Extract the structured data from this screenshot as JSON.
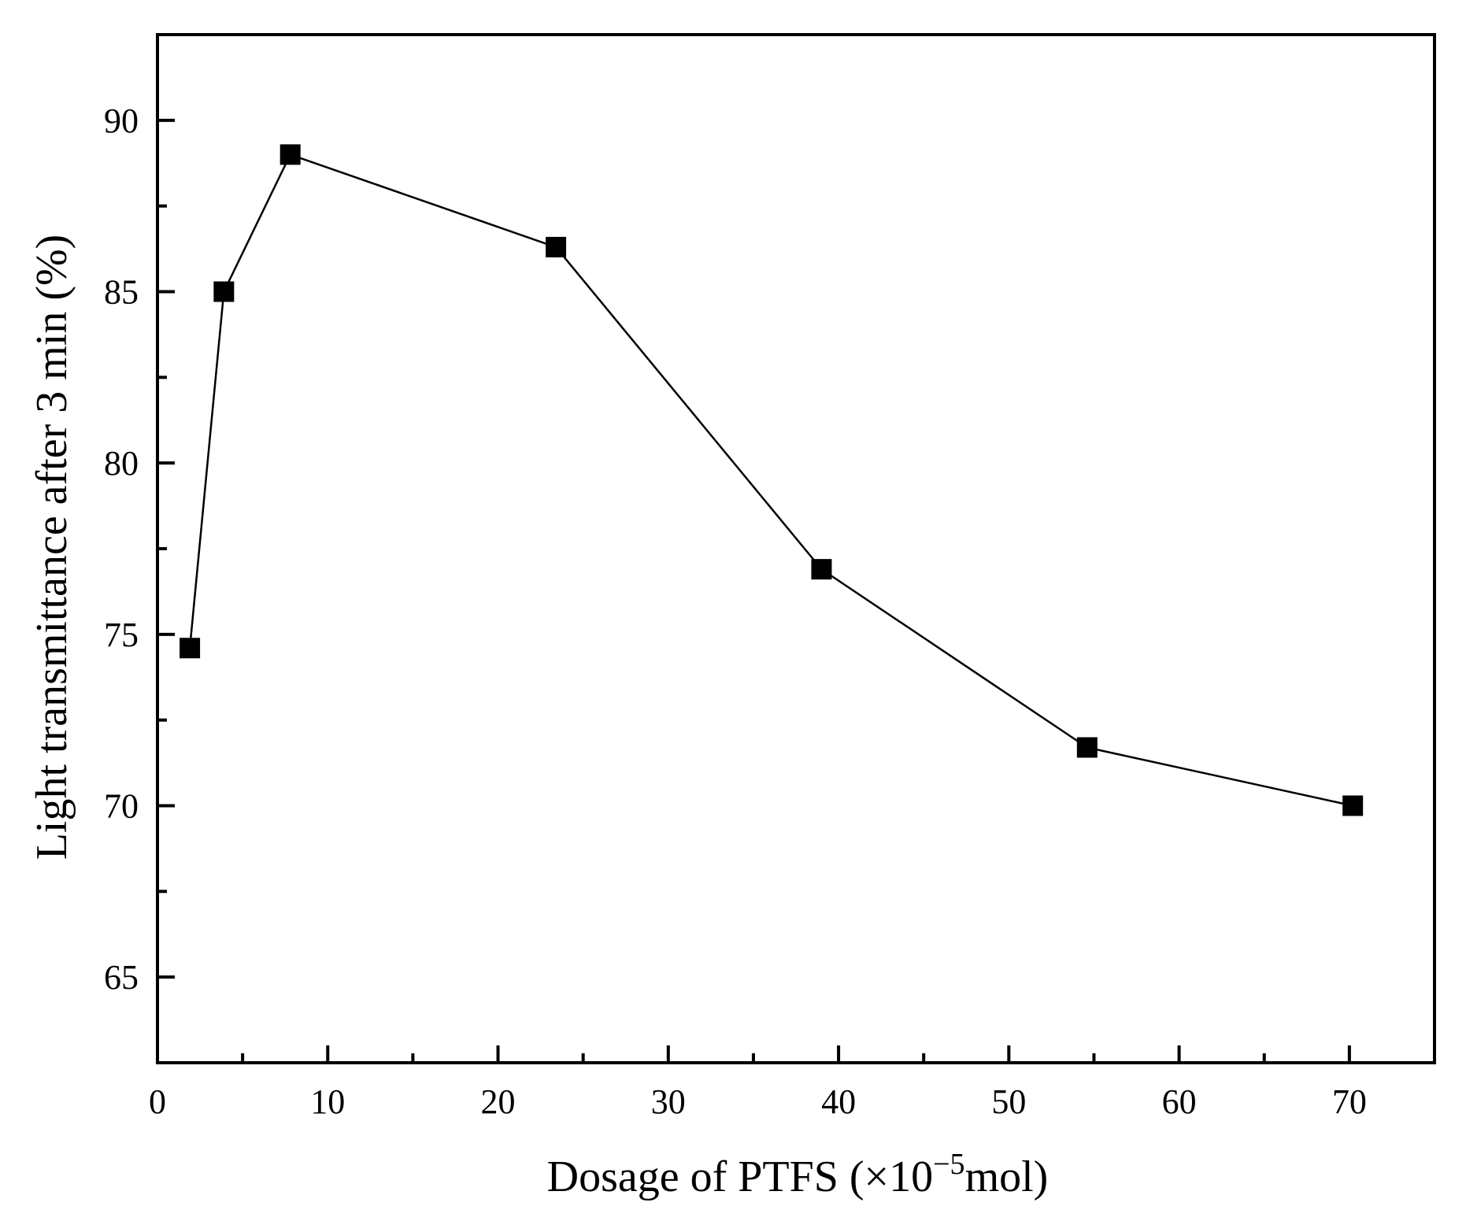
{
  "chart_data": {
    "type": "line",
    "title": "",
    "xlabel": {
      "prefix": "Dosage of PTFS (×10",
      "superscript": "−5",
      "suffix": "mol)"
    },
    "ylabel": "Light transmittance after 3 min (%)",
    "xlim": [
      0,
      75
    ],
    "ylim": [
      62.5,
      92.5
    ],
    "x_ticks": [
      0,
      10,
      20,
      30,
      40,
      50,
      60,
      70
    ],
    "y_ticks": [
      65,
      70,
      75,
      80,
      85,
      90
    ],
    "marker": "square",
    "line_color": "#000000",
    "marker_color": "#000000",
    "series": [
      {
        "name": "Light transmittance",
        "x": [
          1.9,
          3.9,
          7.8,
          23.4,
          39.0,
          54.6,
          70.2
        ],
        "y": [
          74.6,
          85.0,
          89.0,
          86.3,
          76.9,
          71.7,
          70.0
        ]
      }
    ]
  }
}
